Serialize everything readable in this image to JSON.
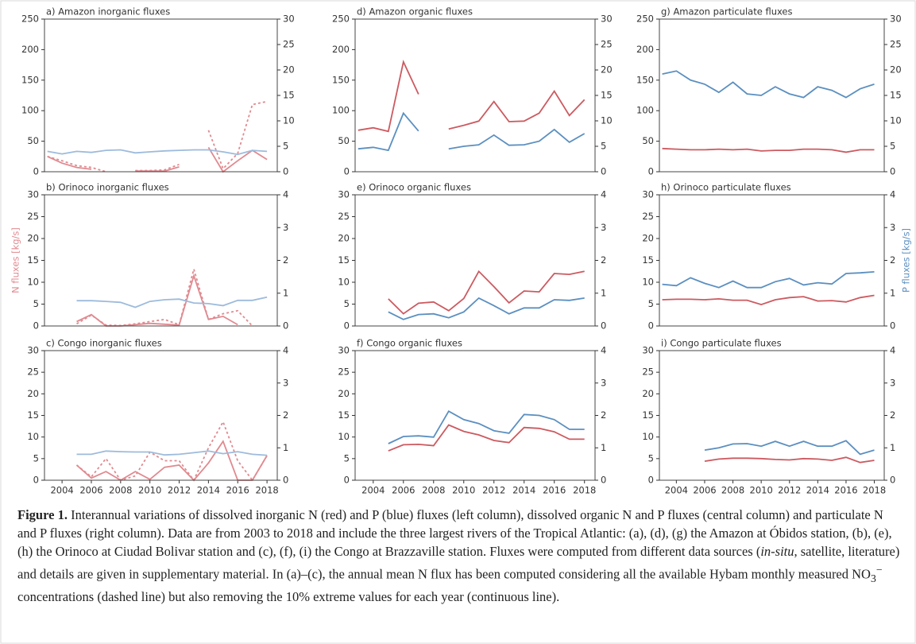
{
  "chart_data": [
    {
      "type": "line",
      "title": "a) Amazon inorganic fluxes",
      "x": [
        2003,
        2004,
        2005,
        2006,
        2007,
        2008,
        2009,
        2010,
        2011,
        2012,
        2013,
        2014,
        2015,
        2016,
        2017,
        2018
      ],
      "series": [
        {
          "color": "#e08a90",
          "linestyle": "solid",
          "values": [
            25,
            14,
            7,
            4,
            null,
            null,
            1,
            1,
            1,
            8,
            null,
            40,
            0,
            18,
            35,
            20
          ]
        },
        {
          "color": "#e08a90",
          "linestyle": "dashed",
          "values": [
            25,
            18,
            10,
            7,
            0,
            null,
            2,
            2,
            3,
            12,
            null,
            68,
            5,
            30,
            110,
            115
          ]
        },
        {
          "color": "#9dbbdc",
          "linestyle": "solid",
          "axis": "y2",
          "values": [
            4,
            3.5,
            4,
            3.8,
            4.2,
            4.3,
            3.7,
            3.9,
            4.1,
            4.2,
            4.3,
            4.3,
            3.9,
            3.4,
            4.2,
            4
          ]
        }
      ],
      "xlim": [
        2002.8,
        2018.7
      ],
      "ylim": [
        0,
        250
      ],
      "yticks": [
        0,
        50,
        100,
        150,
        200,
        250
      ],
      "y2lim": [
        0,
        30
      ],
      "y2ticks": [
        0,
        5,
        10,
        15,
        20,
        25,
        30
      ]
    },
    {
      "type": "line",
      "title": "b) Orinoco inorganic fluxes",
      "ylabel": "N fluxes [kg/s]",
      "x": [
        2003,
        2004,
        2005,
        2006,
        2007,
        2008,
        2009,
        2010,
        2011,
        2012,
        2013,
        2014,
        2015,
        2016,
        2017,
        2018
      ],
      "series": [
        {
          "color": "#e08a90",
          "linestyle": "solid",
          "values": [
            null,
            null,
            1,
            2.6,
            0,
            0,
            0.3,
            0.6,
            0.4,
            0.2,
            11.5,
            1.5,
            2.2,
            0.3,
            null,
            null
          ]
        },
        {
          "color": "#e08a90",
          "linestyle": "dashed",
          "values": [
            null,
            null,
            0.5,
            2.5,
            0.2,
            0.1,
            0.5,
            1,
            1.5,
            0.3,
            13,
            1.5,
            2.8,
            3.5,
            0,
            null
          ]
        },
        {
          "color": "#9dbbdc",
          "linestyle": "solid",
          "axis": "y2",
          "values": [
            null,
            null,
            0.77,
            0.77,
            0.75,
            0.72,
            0.57,
            0.75,
            0.8,
            0.82,
            0.7,
            0.68,
            0.62,
            0.78,
            0.78,
            0.88
          ]
        }
      ],
      "xlim": [
        2002.8,
        2018.7
      ],
      "ylim": [
        0,
        30
      ],
      "yticks": [
        0,
        5,
        10,
        15,
        20,
        25,
        30
      ],
      "y2lim": [
        0,
        4
      ],
      "y2ticks": [
        0,
        1,
        2,
        3,
        4
      ]
    },
    {
      "type": "line",
      "title": "c) Congo inorganic fluxes",
      "x": [
        2003,
        2004,
        2005,
        2006,
        2007,
        2008,
        2009,
        2010,
        2011,
        2012,
        2013,
        2014,
        2015,
        2016,
        2017,
        2018
      ],
      "series": [
        {
          "color": "#e08a90",
          "linestyle": "solid",
          "values": [
            null,
            null,
            3.5,
            0.5,
            2,
            0,
            2,
            0.2,
            3,
            3.5,
            0,
            4,
            9,
            0,
            0,
            5.7
          ]
        },
        {
          "color": "#e08a90",
          "linestyle": "dashed",
          "values": [
            null,
            null,
            3.5,
            0.8,
            5,
            0,
            1,
            6.5,
            4.5,
            4.5,
            0,
            7.5,
            13.5,
            4.5,
            0,
            5.7
          ]
        },
        {
          "color": "#9dbbdc",
          "linestyle": "solid",
          "axis": "y2",
          "values": [
            null,
            null,
            0.8,
            0.8,
            0.9,
            0.88,
            0.87,
            0.87,
            0.78,
            0.8,
            0.85,
            0.9,
            0.82,
            0.88,
            0.8,
            0.77
          ]
        }
      ],
      "xlim": [
        2002.8,
        2018.7
      ],
      "xticks": [
        2004,
        2006,
        2008,
        2010,
        2012,
        2014,
        2016,
        2018
      ],
      "ylim": [
        0,
        30
      ],
      "yticks": [
        0,
        5,
        10,
        15,
        20,
        25,
        30
      ],
      "y2lim": [
        0,
        4
      ],
      "y2ticks": [
        0,
        1,
        2,
        3,
        4
      ]
    },
    {
      "type": "line",
      "title": "d) Amazon organic fluxes",
      "x": [
        2003,
        2004,
        2005,
        2006,
        2007,
        2008,
        2009,
        2010,
        2011,
        2012,
        2013,
        2014,
        2015,
        2016,
        2017,
        2018
      ],
      "series": [
        {
          "color": "#cc5a60",
          "linestyle": "solid",
          "values": [
            68,
            72,
            66,
            180,
            127,
            null,
            70,
            76,
            83,
            115,
            82,
            83,
            96,
            132,
            92,
            118
          ]
        },
        {
          "color": "#5b8fc0",
          "linestyle": "solid",
          "axis": "y2",
          "values": [
            4.5,
            4.8,
            4.2,
            11.5,
            8,
            null,
            4.5,
            5,
            5.3,
            7.2,
            5.2,
            5.3,
            6,
            8.3,
            5.8,
            7.5
          ]
        }
      ],
      "xlim": [
        2002.8,
        2018.7
      ],
      "ylim": [
        0,
        250
      ],
      "yticks": [
        0,
        50,
        100,
        150,
        200,
        250
      ],
      "y2lim": [
        0,
        30
      ],
      "y2ticks": [
        0,
        5,
        10,
        15,
        20,
        25,
        30
      ]
    },
    {
      "type": "line",
      "title": "e) Orinoco organic fluxes",
      "x": [
        2003,
        2004,
        2005,
        2006,
        2007,
        2008,
        2009,
        2010,
        2011,
        2012,
        2013,
        2014,
        2015,
        2016,
        2017,
        2018
      ],
      "series": [
        {
          "color": "#cc5a60",
          "linestyle": "solid",
          "values": [
            null,
            null,
            6.2,
            2.8,
            5.2,
            5.5,
            3.5,
            6.3,
            12.5,
            9,
            5.3,
            8,
            7.8,
            12,
            11.8,
            12.5
          ]
        },
        {
          "color": "#5b8fc0",
          "linestyle": "solid",
          "axis": "y2",
          "values": [
            null,
            null,
            0.43,
            0.2,
            0.35,
            0.37,
            0.25,
            0.43,
            0.85,
            0.62,
            0.37,
            0.55,
            0.55,
            0.8,
            0.78,
            0.85
          ]
        }
      ],
      "xlim": [
        2002.8,
        2018.7
      ],
      "ylim": [
        0,
        30
      ],
      "yticks": [
        0,
        5,
        10,
        15,
        20,
        25,
        30
      ],
      "y2lim": [
        0,
        4
      ],
      "y2ticks": [
        0,
        1,
        2,
        3,
        4
      ]
    },
    {
      "type": "line",
      "title": "f) Congo organic fluxes",
      "x": [
        2003,
        2004,
        2005,
        2006,
        2007,
        2008,
        2009,
        2010,
        2011,
        2012,
        2013,
        2014,
        2015,
        2016,
        2017,
        2018
      ],
      "series": [
        {
          "color": "#cc5a60",
          "linestyle": "solid",
          "values": [
            null,
            null,
            6.8,
            8.2,
            8.3,
            8,
            12.8,
            11.3,
            10.5,
            9.2,
            8.7,
            12.2,
            12,
            11.2,
            9.5,
            9.5
          ]
        },
        {
          "color": "#5b8fc0",
          "linestyle": "solid",
          "axis": "y2",
          "values": [
            null,
            null,
            1.13,
            1.35,
            1.37,
            1.33,
            2.13,
            1.87,
            1.75,
            1.53,
            1.45,
            2.03,
            2,
            1.87,
            1.57,
            1.57
          ]
        }
      ],
      "xlim": [
        2002.8,
        2018.7
      ],
      "xticks": [
        2004,
        2006,
        2008,
        2010,
        2012,
        2014,
        2016,
        2018
      ],
      "ylim": [
        0,
        30
      ],
      "yticks": [
        0,
        5,
        10,
        15,
        20,
        25,
        30
      ],
      "y2lim": [
        0,
        4
      ],
      "y2ticks": [
        0,
        1,
        2,
        3,
        4
      ]
    },
    {
      "type": "line",
      "title": "g) Amazon particulate fluxes",
      "x": [
        2003,
        2004,
        2005,
        2006,
        2007,
        2008,
        2009,
        2010,
        2011,
        2012,
        2013,
        2014,
        2015,
        2016,
        2017,
        2018
      ],
      "series": [
        {
          "color": "#cc5a60",
          "linestyle": "solid",
          "values": [
            38,
            37,
            36,
            36,
            37,
            36,
            37,
            34,
            35,
            35,
            37,
            37,
            36,
            32,
            36,
            36
          ]
        },
        {
          "color": "#5b8fc0",
          "linestyle": "solid",
          "axis": "y2",
          "values": [
            19.2,
            19.8,
            18,
            17.2,
            15.6,
            17.6,
            15.3,
            15,
            16.7,
            15.3,
            14.6,
            16.7,
            16,
            14.6,
            16.3,
            17.2
          ]
        }
      ],
      "xlim": [
        2002.8,
        2018.7
      ],
      "ylim": [
        0,
        250
      ],
      "yticks": [
        0,
        50,
        100,
        150,
        200,
        250
      ],
      "y2lim": [
        0,
        30
      ],
      "y2ticks": [
        0,
        5,
        10,
        15,
        20,
        25,
        30
      ]
    },
    {
      "type": "line",
      "title": "h) Orinoco particulate fluxes",
      "y2label": "P fluxes [kg/s]",
      "x": [
        2003,
        2004,
        2005,
        2006,
        2007,
        2008,
        2009,
        2010,
        2011,
        2012,
        2013,
        2014,
        2015,
        2016,
        2017,
        2018
      ],
      "series": [
        {
          "color": "#cc5a60",
          "linestyle": "solid",
          "values": [
            6,
            6.1,
            6.1,
            6,
            6.2,
            5.9,
            5.9,
            4.9,
            6,
            6.5,
            6.7,
            5.7,
            5.8,
            5.5,
            6.5,
            7
          ]
        },
        {
          "color": "#5b8fc0",
          "linestyle": "solid",
          "axis": "y2",
          "values": [
            1.27,
            1.23,
            1.47,
            1.3,
            1.17,
            1.37,
            1.17,
            1.17,
            1.35,
            1.45,
            1.25,
            1.32,
            1.28,
            1.6,
            1.62,
            1.65
          ]
        }
      ],
      "xlim": [
        2002.8,
        2018.7
      ],
      "ylim": [
        0,
        30
      ],
      "yticks": [
        0,
        5,
        10,
        15,
        20,
        25,
        30
      ],
      "y2lim": [
        0,
        4
      ],
      "y2ticks": [
        0,
        1,
        2,
        3,
        4
      ]
    },
    {
      "type": "line",
      "title": "i) Congo particulate fluxes",
      "x": [
        2003,
        2004,
        2005,
        2006,
        2007,
        2008,
        2009,
        2010,
        2011,
        2012,
        2013,
        2014,
        2015,
        2016,
        2017,
        2018
      ],
      "series": [
        {
          "color": "#cc5a60",
          "linestyle": "solid",
          "values": [
            null,
            null,
            null,
            4.4,
            4.9,
            5.1,
            5.1,
            5,
            4.8,
            4.7,
            5,
            4.9,
            4.6,
            5.3,
            4.1,
            4.6
          ]
        },
        {
          "color": "#5b8fc0",
          "linestyle": "solid",
          "axis": "y2",
          "values": [
            null,
            null,
            null,
            0.93,
            1,
            1.12,
            1.13,
            1.05,
            1.2,
            1.05,
            1.2,
            1.05,
            1.05,
            1.22,
            0.8,
            0.93
          ]
        }
      ],
      "xlim": [
        2002.8,
        2018.7
      ],
      "xticks": [
        2004,
        2006,
        2008,
        2010,
        2012,
        2014,
        2016,
        2018
      ],
      "ylim": [
        0,
        30
      ],
      "yticks": [
        0,
        5,
        10,
        15,
        20,
        25,
        30
      ],
      "y2lim": [
        0,
        4
      ],
      "y2ticks": [
        0,
        1,
        2,
        3,
        4
      ]
    }
  ],
  "caption": [
    "Figure 1.",
    " Interannual variations of dissolved inorganic N (red) and P (blue) fluxes (left column), dissolved organic N and P fluxes (central column) and particulate N and P fluxes (right column). Data are from 2003 to 2018 and include the three largest rivers of the Tropical Atlantic: (a), (d), (g) the Amazon at Óbidos station, (b), (e), (h) the Orinoco at Ciudad Bolivar station and (c), (f), (i) the Congo at Brazzaville station. Fluxes were computed from different data sources (",
    "in-situ",
    ", satellite, literature) and details are given in supplementary material. In (a)–(c), the annual mean N flux has been computed considering all the available Hybam monthly measured NO",
    "3",
    "−",
    " concentrations (dashed line) but also removing the 10% extreme values for each year (continuous line)."
  ]
}
